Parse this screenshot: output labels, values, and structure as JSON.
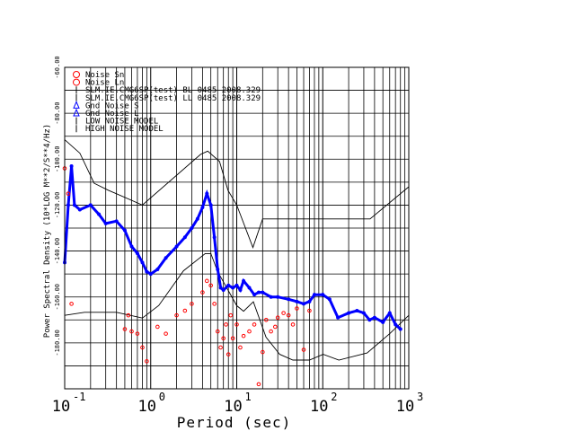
{
  "chart_data": {
    "type": "scatter",
    "xscale": "log",
    "xlim": [
      0.1,
      1000
    ],
    "ylim": [
      -200,
      -60
    ],
    "xlabel": "Period (sec)",
    "ylabel": "Power Spectral Density (10*LOG M**2/S**4/Hz)",
    "x_ticks": [
      {
        "value": 0.1,
        "base": "10",
        "exp": "-1"
      },
      {
        "value": 1,
        "base": "10",
        "exp": "0"
      },
      {
        "value": 10,
        "base": "10",
        "exp": "1"
      },
      {
        "value": 100,
        "base": "10",
        "exp": "2"
      },
      {
        "value": 1000,
        "base": "10",
        "exp": "3"
      }
    ],
    "y_ticks": [
      {
        "value": -60,
        "label": "-60.00"
      },
      {
        "value": -80,
        "label": "-80.00"
      },
      {
        "value": -100,
        "label": "-100.00"
      },
      {
        "value": -120,
        "label": "-120.00"
      },
      {
        "value": -140,
        "label": "-140.00"
      },
      {
        "value": -160,
        "label": "-160.00"
      },
      {
        "value": -180,
        "label": "-180.00"
      }
    ],
    "legend_position": "top-left",
    "legend": [
      {
        "label": "Noise Sn",
        "color": "#ff0000",
        "marker": "circle"
      },
      {
        "label": "Noise Ln",
        "color": "#ff0000",
        "marker": "circle"
      },
      {
        "label": "SLM.IE.CMG6SP(test) BL 0485 2008.329",
        "color": "#000000",
        "marker": "none"
      },
      {
        "label": "SLM.IE.CMG6SP(test) LL 0485 2008.329",
        "color": "#000000",
        "marker": "none"
      },
      {
        "label": "Gnd Noise S",
        "color": "#0000ff",
        "marker": "triangle"
      },
      {
        "label": "Gnd Noise L",
        "color": "#0000ff",
        "marker": "triangle"
      },
      {
        "label": "LOW NOISE MODEL",
        "color": "#000000",
        "marker": "line"
      },
      {
        "label": "HIGH NOISE MODEL",
        "color": "#000000",
        "marker": "line"
      }
    ],
    "series": [
      {
        "name": "Gnd Noise S",
        "color": "#0000ff",
        "x": [
          0.1,
          0.11,
          0.12,
          0.13,
          0.15,
          0.2,
          0.25,
          0.3,
          0.4,
          0.5,
          0.6,
          0.7,
          0.8,
          0.9,
          1.0,
          1.2,
          1.5,
          2.0,
          2.5,
          3.0,
          3.5,
          4.0,
          4.5,
          5.0,
          5.5,
          6.0,
          6.5,
          7.0,
          8.0,
          9.0,
          10.0,
          11.0,
          12.0,
          14.0,
          16.0,
          18.0,
          20.0,
          25.0,
          30.0,
          40.0,
          50.0,
          60.0,
          70.0,
          80.0,
          100.0,
          120.0,
          150.0,
          200.0,
          250.0,
          300.0,
          350.0,
          400.0,
          500.0,
          600.0,
          700.0,
          800.0
        ],
        "y": [
          -145,
          -120,
          -103,
          -120,
          -122,
          -120,
          -124,
          -128,
          -127,
          -131,
          -138,
          -141,
          -145,
          -149,
          -150,
          -148,
          -143,
          -138,
          -134,
          -130,
          -126,
          -121,
          -115,
          -120,
          -134,
          -148,
          -156,
          -157,
          -155,
          -156,
          -155,
          -157,
          -153,
          -156,
          -159,
          -158,
          -158,
          -160,
          -160,
          -161,
          -162,
          -163,
          -162,
          -159,
          -159,
          -161,
          -169,
          -167,
          -166,
          -167,
          -170,
          -169,
          -171,
          -167,
          -172,
          -174
        ]
      },
      {
        "name": "Gnd Noise L",
        "color": "#ff0000",
        "x": [
          0.1,
          0.11,
          0.12,
          0.5,
          0.55,
          0.6,
          0.7,
          0.8,
          0.9,
          1.2,
          1.5,
          2.0,
          2.5,
          3.0,
          4.0,
          4.5,
          5.0,
          5.5,
          6.0,
          6.5,
          7.0,
          7.5,
          8.0,
          8.5,
          9.0,
          10.0,
          11.0,
          12.0,
          14.0,
          16.0,
          18.0,
          20.0,
          22.0,
          25.0,
          28.0,
          30.0,
          35.0,
          40.0,
          45.0,
          50.0,
          60.0,
          70.0
        ],
        "y": [
          -104,
          -115,
          -163,
          -174,
          -168,
          -175,
          -176,
          -182,
          -188,
          -173,
          -176,
          -168,
          -166,
          -163,
          -158,
          -153,
          -155,
          -163,
          -175,
          -182,
          -178,
          -172,
          -185,
          -168,
          -178,
          -172,
          -182,
          -177,
          -175,
          -172,
          -198,
          -184,
          -170,
          -175,
          -173,
          -169,
          -167,
          -168,
          -172,
          -165,
          -183,
          -166
        ]
      }
    ],
    "models": [
      {
        "name": "LOW NOISE MODEL",
        "x": [
          0.1,
          0.17,
          0.4,
          0.8,
          1.24,
          2.4,
          4.3,
          5.0,
          6.0,
          10.0,
          12.0,
          15.6,
          21.9,
          31.6,
          45.0,
          70.0,
          101.0,
          154.0,
          328.0,
          600.0,
          1000.0
        ],
        "y": [
          -168,
          -166.7,
          -166.7,
          -169.2,
          -163.7,
          -148.6,
          -141.1,
          -141.1,
          -149.0,
          -163.8,
          -166.2,
          -162.1,
          -177.5,
          -185.0,
          -187.5,
          -187.5,
          -185.0,
          -187.5,
          -184.4,
          -176.0,
          -168.0
        ]
      },
      {
        "name": "HIGH NOISE MODEL",
        "x": [
          0.1,
          0.15,
          0.22,
          0.32,
          0.8,
          3.8,
          4.6,
          6.3,
          7.9,
          10.0,
          15.4,
          20.0,
          354.8,
          1000.0
        ],
        "y": [
          -91.5,
          -97.4,
          -110.5,
          -113.5,
          -120.0,
          -97.9,
          -96.5,
          -101.0,
          -113.5,
          -120.0,
          -138.5,
          -126.0,
          -126.0,
          -112.0
        ]
      }
    ]
  }
}
